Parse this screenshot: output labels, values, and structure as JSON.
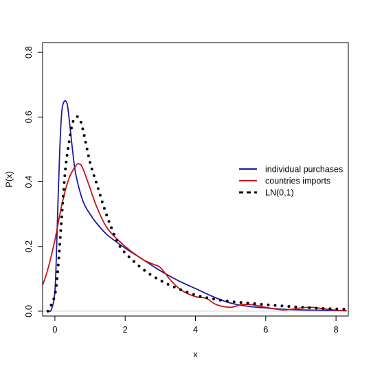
{
  "chart_data": {
    "type": "line",
    "title": "",
    "xlabel": "x",
    "ylabel": "P(x)",
    "xlim": [
      -0.35,
      8.35
    ],
    "ylim": [
      -0.015,
      0.83
    ],
    "xticks": [
      0,
      2,
      4,
      6,
      8
    ],
    "yticks": [
      0.0,
      0.2,
      0.4,
      0.6,
      0.8
    ],
    "xtick_labels": [
      "0",
      "2",
      "4",
      "6",
      "8"
    ],
    "ytick_labels": [
      "0.0",
      "0.2",
      "0.4",
      "0.6",
      "0.8"
    ],
    "grid": false,
    "baseline": 0,
    "legend_position": "right",
    "series": [
      {
        "name": "individual purchases",
        "color": "#1a1aa6",
        "style": "solid",
        "x": [
          -0.2,
          -0.1,
          0.0,
          0.05,
          0.1,
          0.15,
          0.2,
          0.25,
          0.3,
          0.35,
          0.4,
          0.5,
          0.6,
          0.8,
          1.0,
          1.2,
          1.5,
          2.0,
          2.5,
          3.0,
          3.5,
          4.0,
          4.5,
          5.0,
          5.5,
          6.0,
          6.5,
          7.0,
          7.5,
          8.0,
          8.3
        ],
        "y": [
          0.0,
          0.005,
          0.06,
          0.2,
          0.38,
          0.53,
          0.62,
          0.645,
          0.65,
          0.64,
          0.6,
          0.5,
          0.42,
          0.34,
          0.3,
          0.27,
          0.235,
          0.195,
          0.16,
          0.125,
          0.095,
          0.07,
          0.045,
          0.025,
          0.015,
          0.01,
          0.006,
          0.004,
          0.003,
          0.002,
          0.002
        ]
      },
      {
        "name": "countries imports",
        "color": "#cc1111",
        "style": "solid",
        "x": [
          -0.35,
          -0.2,
          0.0,
          0.2,
          0.4,
          0.6,
          0.7,
          0.8,
          1.0,
          1.2,
          1.5,
          2.0,
          2.5,
          2.8,
          3.0,
          3.3,
          3.6,
          4.0,
          4.3,
          4.6,
          5.0,
          5.3,
          5.6,
          6.0,
          6.5,
          7.0,
          7.3,
          7.6,
          8.0,
          8.3
        ],
        "y": [
          0.08,
          0.13,
          0.22,
          0.33,
          0.41,
          0.45,
          0.455,
          0.44,
          0.38,
          0.32,
          0.255,
          0.2,
          0.16,
          0.145,
          0.135,
          0.095,
          0.065,
          0.045,
          0.04,
          0.02,
          0.012,
          0.02,
          0.02,
          0.012,
          0.004,
          0.01,
          0.012,
          0.008,
          0.003,
          0.001
        ]
      },
      {
        "name": "LN(0,1)",
        "color": "#000000",
        "style": "dotted",
        "x": [
          -0.2,
          0.0,
          0.1,
          0.2,
          0.3,
          0.4,
          0.5,
          0.6,
          0.7,
          0.8,
          1.0,
          1.2,
          1.4,
          1.6,
          1.8,
          2.0,
          2.5,
          3.0,
          3.5,
          4.0,
          4.5,
          5.0,
          5.5,
          6.0,
          6.5,
          7.0,
          7.5,
          8.0,
          8.3
        ],
        "y": [
          0.0,
          0.05,
          0.15,
          0.3,
          0.44,
          0.52,
          0.58,
          0.6,
          0.595,
          0.56,
          0.46,
          0.39,
          0.32,
          0.26,
          0.21,
          0.18,
          0.13,
          0.095,
          0.07,
          0.05,
          0.038,
          0.03,
          0.025,
          0.02,
          0.016,
          0.012,
          0.009,
          0.007,
          0.006
        ]
      }
    ]
  }
}
